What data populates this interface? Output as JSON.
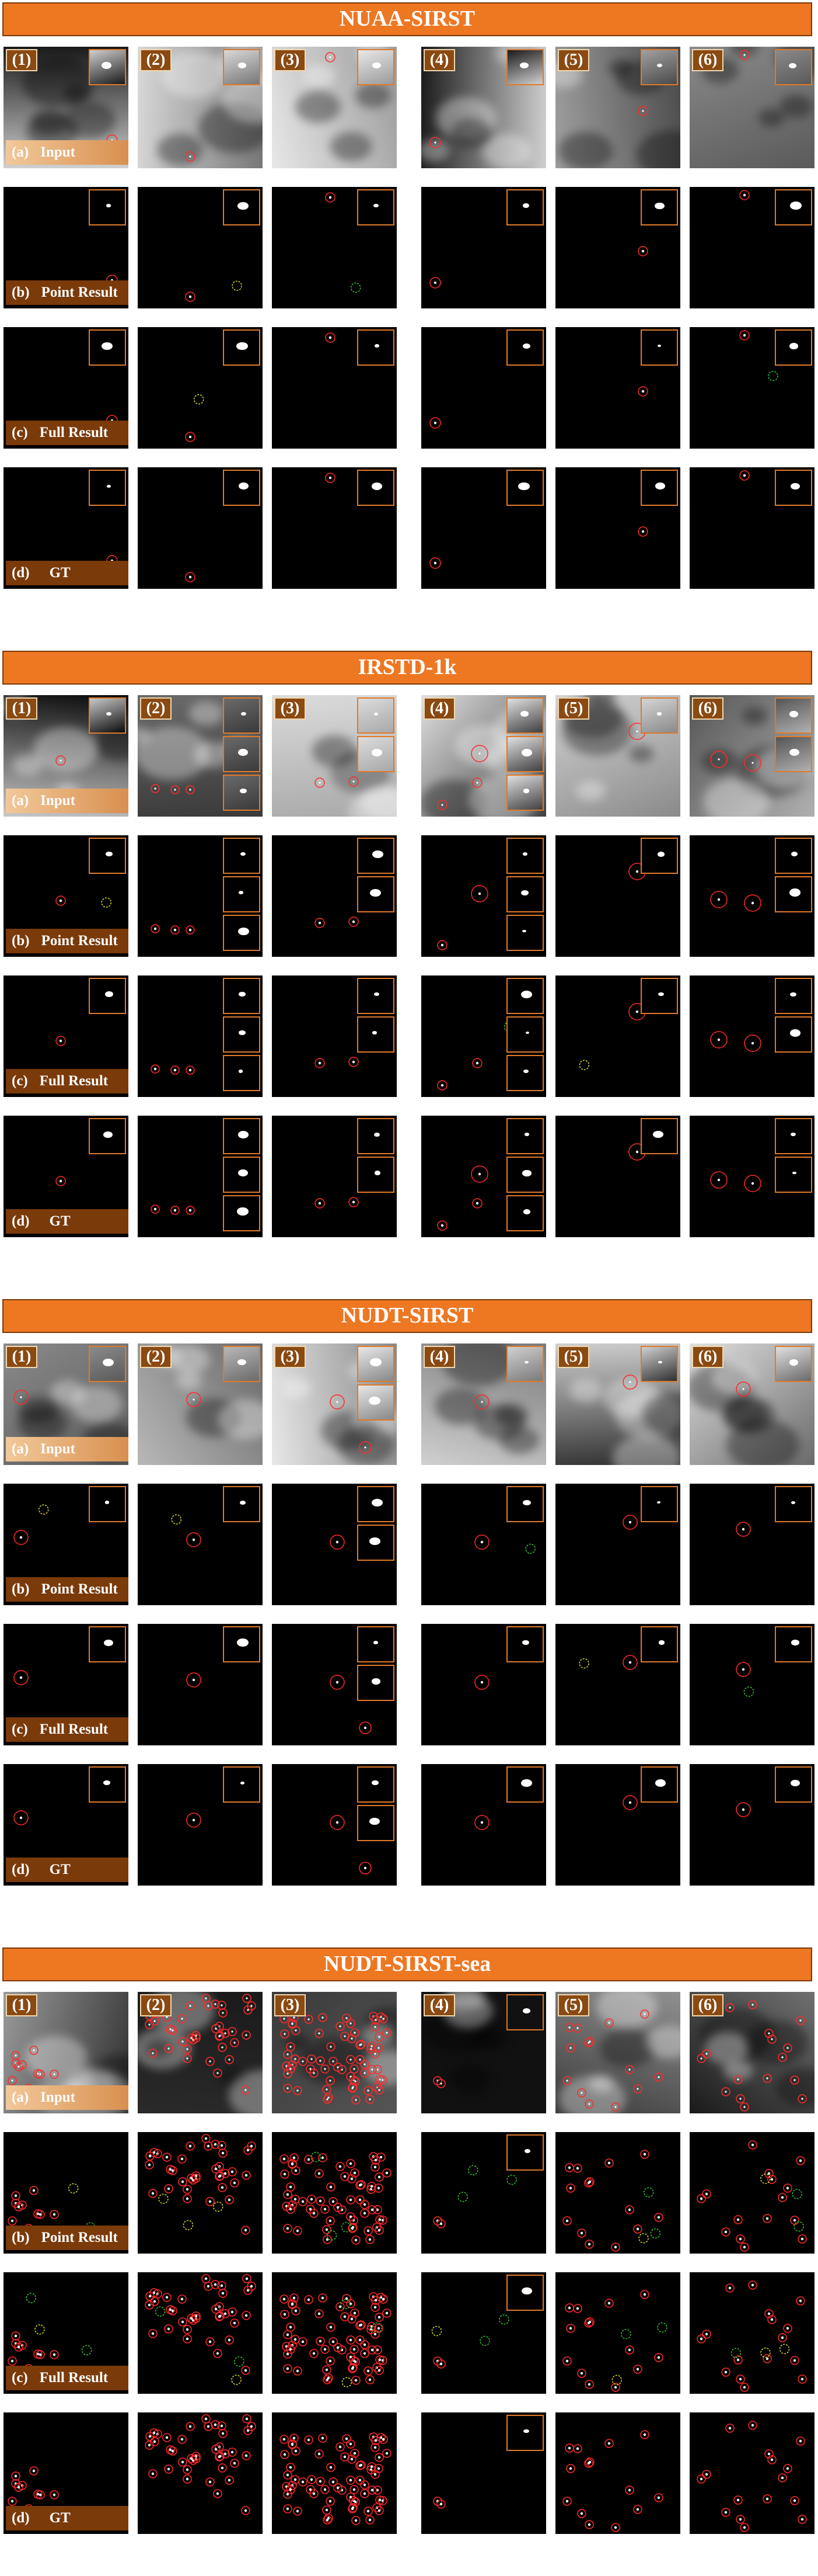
{
  "figure": {
    "sections": [
      {
        "title": "NUAA-SIRST",
        "theme": "nuaa"
      },
      {
        "title": "IRSTD-1k",
        "theme": "irstd"
      },
      {
        "title": "NUDT-SIRST",
        "theme": "nudt"
      },
      {
        "title": "NUDT-SIRST-sea",
        "theme": "sea"
      }
    ],
    "column_labels": [
      "(1)",
      "(2)",
      "(3)",
      "(4)",
      "(5)",
      "(6)"
    ],
    "row_labels": [
      {
        "prefix": "(a)",
        "text": "Input"
      },
      {
        "prefix": "(b)",
        "text": "Point Result"
      },
      {
        "prefix": "(c)",
        "text": "Full Result"
      },
      {
        "prefix": "(d)",
        "text": "GT"
      }
    ],
    "colors": {
      "banner": "#ee7722",
      "label_box": "#7a3a0a",
      "target_circle": "#ff2a2a",
      "false_alarm_circle": "#33cc33",
      "missed_circle": "#dddd22",
      "inset_border": "#e07a2a"
    }
  }
}
